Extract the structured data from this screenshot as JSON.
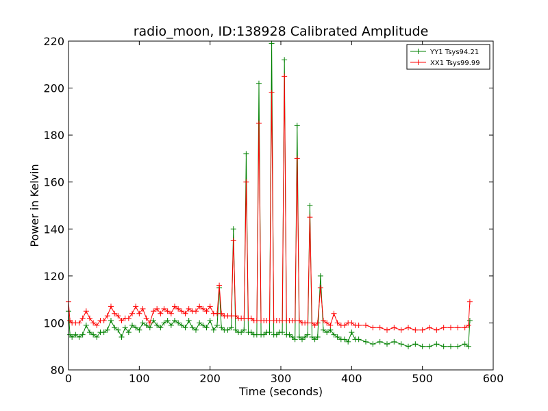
{
  "chart_data": {
    "type": "line",
    "title": "radio_moon, ID:138928 Calibrated Amplitude",
    "xlabel": "Time (seconds)",
    "ylabel": "Power in Kelvin",
    "xlim": [
      0,
      600
    ],
    "ylim": [
      80,
      220
    ],
    "xticks": [
      0,
      100,
      200,
      300,
      400,
      500,
      600
    ],
    "yticks": [
      80,
      100,
      120,
      140,
      160,
      180,
      200,
      220
    ],
    "grid": false,
    "legend_position": "top-right",
    "marker": "+",
    "series": [
      {
        "name": "YY1 Tsys94.21",
        "color": "#008000",
        "x": [
          0,
          2,
          5,
          10,
          15,
          20,
          25,
          30,
          35,
          40,
          45,
          50,
          55,
          60,
          65,
          70,
          75,
          80,
          85,
          90,
          95,
          100,
          105,
          110,
          115,
          120,
          125,
          130,
          135,
          140,
          145,
          150,
          155,
          160,
          165,
          170,
          175,
          180,
          185,
          190,
          195,
          200,
          205,
          210,
          213,
          216,
          220,
          225,
          230,
          233,
          236,
          240,
          244,
          248,
          251,
          254,
          258,
          262,
          266,
          269,
          272,
          276,
          280,
          284,
          287,
          290,
          294,
          298,
          302,
          305,
          308,
          312,
          316,
          320,
          323,
          326,
          330,
          334,
          338,
          341,
          344,
          348,
          352,
          356,
          360,
          365,
          370,
          375,
          380,
          385,
          390,
          395,
          400,
          405,
          410,
          420,
          430,
          440,
          450,
          460,
          470,
          480,
          490,
          500,
          510,
          520,
          530,
          540,
          550,
          560,
          565,
          567
        ],
        "y": [
          105,
          95,
          94,
          95,
          94,
          95,
          99,
          96,
          95,
          94,
          96,
          96,
          97,
          101,
          98,
          97,
          94,
          98,
          96,
          99,
          98,
          97,
          100,
          99,
          98,
          101,
          99,
          98,
          100,
          101,
          99,
          101,
          100,
          99,
          98,
          101,
          98,
          97,
          100,
          99,
          98,
          101,
          97,
          99,
          115,
          98,
          97,
          97,
          98,
          140,
          97,
          96,
          96,
          97,
          172,
          96,
          96,
          95,
          95,
          202,
          95,
          95,
          96,
          96,
          219,
          95,
          95,
          96,
          96,
          212,
          95,
          95,
          94,
          93,
          184,
          94,
          93,
          94,
          95,
          150,
          94,
          93,
          94,
          120,
          97,
          96,
          97,
          95,
          94,
          93,
          93,
          92,
          96,
          93,
          93,
          92,
          91,
          92,
          91,
          92,
          91,
          90,
          91,
          90,
          90,
          91,
          90,
          90,
          90,
          91,
          90,
          101
        ]
      },
      {
        "name": "XX1 Tsys99.99",
        "color": "#ff0000",
        "x": [
          0,
          2,
          5,
          10,
          15,
          20,
          25,
          30,
          35,
          40,
          45,
          50,
          55,
          60,
          65,
          70,
          75,
          80,
          85,
          90,
          95,
          100,
          105,
          110,
          115,
          120,
          125,
          130,
          135,
          140,
          145,
          150,
          155,
          160,
          165,
          170,
          175,
          180,
          185,
          190,
          195,
          200,
          205,
          210,
          213,
          216,
          220,
          225,
          230,
          233,
          236,
          240,
          244,
          248,
          251,
          254,
          258,
          262,
          266,
          269,
          272,
          276,
          280,
          284,
          287,
          290,
          294,
          298,
          302,
          305,
          308,
          312,
          316,
          320,
          323,
          326,
          330,
          334,
          338,
          341,
          344,
          348,
          352,
          356,
          360,
          365,
          370,
          375,
          380,
          385,
          390,
          395,
          400,
          405,
          410,
          420,
          430,
          440,
          450,
          460,
          470,
          480,
          490,
          500,
          510,
          520,
          530,
          540,
          550,
          560,
          565,
          567
        ],
        "y": [
          109,
          101,
          100,
          100,
          100,
          102,
          105,
          102,
          100,
          99,
          101,
          101,
          103,
          107,
          104,
          103,
          101,
          102,
          102,
          104,
          107,
          104,
          106,
          102,
          100,
          105,
          106,
          104,
          106,
          105,
          104,
          107,
          106,
          105,
          104,
          106,
          105,
          105,
          107,
          106,
          105,
          107,
          104,
          104,
          116,
          104,
          103,
          103,
          103,
          135,
          103,
          102,
          102,
          102,
          160,
          102,
          102,
          101,
          101,
          185,
          101,
          101,
          101,
          101,
          198,
          101,
          101,
          101,
          101,
          205,
          101,
          101,
          101,
          101,
          170,
          101,
          100,
          100,
          100,
          145,
          100,
          99,
          100,
          115,
          101,
          100,
          99,
          104,
          100,
          99,
          99,
          100,
          100,
          99,
          99,
          99,
          98,
          98,
          97,
          98,
          97,
          98,
          97,
          97,
          98,
          97,
          98,
          98,
          98,
          98,
          99,
          109
        ]
      }
    ]
  }
}
